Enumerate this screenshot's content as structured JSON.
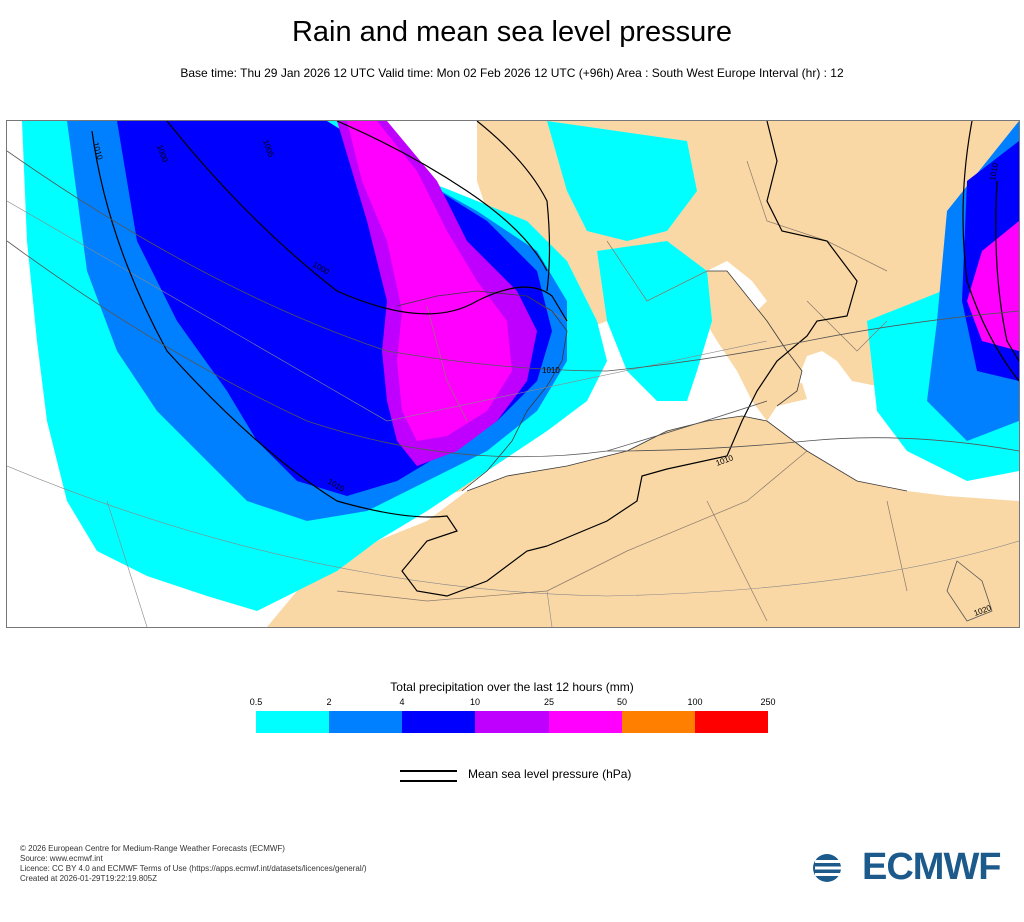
{
  "title": "Rain and mean sea level pressure",
  "subtitle": "Base time: Thu 29 Jan 2026 12 UTC Valid time: Mon 02 Feb 2026 12 UTC (+96h) Area : South West Europe Interval (hr) : 12",
  "legend": {
    "title": "Total precipitation over the last 12 hours (mm)",
    "ticks": [
      "0.5",
      "2",
      "4",
      "10",
      "25",
      "50",
      "100",
      "250"
    ],
    "colors": [
      "#00ffff",
      "#0080ff",
      "#0000ff",
      "#c000ff",
      "#ff00ff",
      "#ff8000",
      "#ff0000"
    ],
    "msl_label": "Mean sea level pressure (hPa)"
  },
  "map": {
    "isobar_labels": [
      "1010",
      "1000",
      "1005",
      "1000",
      "1010",
      "1010",
      "1010",
      "1020",
      "1010"
    ],
    "land_color": "#fad8a6",
    "sea_color": "#ffffff"
  },
  "footer": [
    "© 2026 European Centre for Medium-Range Weather Forecasts (ECMWF)",
    "Source: www.ecmwf.int",
    "Licence: CC BY 4.0 and ECMWF Terms of Use (https://apps.ecmwf.int/datasets/licences/general/)",
    "Created at 2026-01-29T19:22:19.805Z"
  ],
  "logo_text": "ECMWF"
}
